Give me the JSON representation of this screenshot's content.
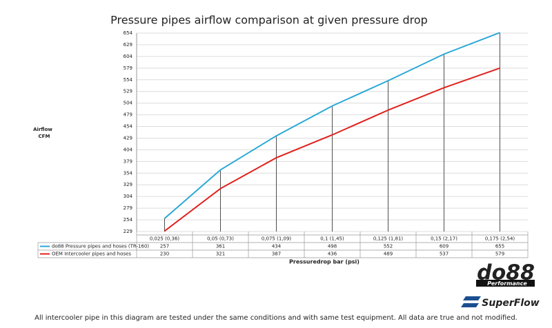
{
  "chart_data": {
    "type": "line",
    "title": "Pressure pipes airflow comparison at given pressure drop",
    "y_label": [
      "Airflow",
      "CFM"
    ],
    "x_label": "Pressuredrop bar (psi)",
    "categories": [
      "0,025 (0,36)",
      "0,05 (0,73)",
      "0,075 (1,09)",
      "0,1 (1,45)",
      "0,125 (1,81)",
      "0,15 (2,17)",
      "0,175 (2,54)"
    ],
    "series": [
      {
        "name": "do88 Pressure pipes and hoses (TR-160)",
        "color": "#29a8d8",
        "values": [
          257,
          361,
          434,
          498,
          552,
          609,
          655
        ]
      },
      {
        "name": "OEM Intercooler pipes and hoses",
        "color": "#e0201b",
        "values": [
          230,
          321,
          387,
          436,
          489,
          537,
          579
        ]
      }
    ],
    "ylim": [
      229,
      654
    ],
    "yticks": [
      229,
      254,
      279,
      304,
      329,
      354,
      379,
      404,
      429,
      454,
      479,
      504,
      529,
      554,
      579,
      604,
      629,
      654
    ],
    "grid": true,
    "footnote": "All intercooler pipe in this diagram are tested under the same conditions and with same test equipment. All data are true and not modified.",
    "logos": [
      "do88",
      "Performance",
      "SuperFlow"
    ]
  }
}
